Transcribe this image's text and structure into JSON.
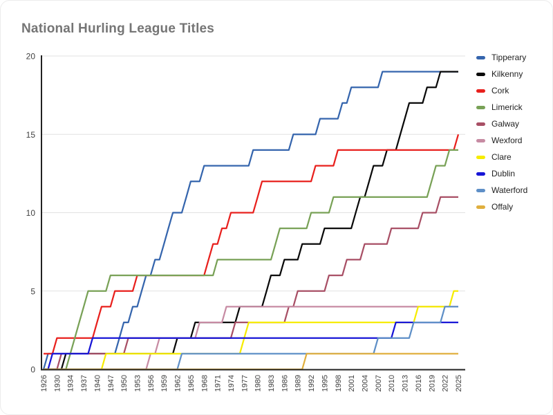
{
  "chart_data": {
    "type": "line",
    "title": "National Hurling League Titles",
    "ylim": [
      0,
      20
    ],
    "y_ticks": [
      0,
      5,
      10,
      15,
      20
    ],
    "grid": true,
    "legend_position": "right",
    "x_tick_label_every": 3,
    "categories": [
      1926,
      1928,
      1929,
      1930,
      1932,
      1933,
      1934,
      1935,
      1936,
      1937,
      1938,
      1939,
      1940,
      1941,
      1946,
      1947,
      1948,
      1949,
      1950,
      1951,
      1952,
      1953,
      1954,
      1955,
      1956,
      1957,
      1958,
      1959,
      1960,
      1961,
      1962,
      1963,
      1964,
      1965,
      1966,
      1967,
      1968,
      1969,
      1970,
      1971,
      1972,
      1973,
      1974,
      1975,
      1976,
      1977,
      1978,
      1979,
      1980,
      1981,
      1982,
      1983,
      1984,
      1985,
      1986,
      1987,
      1988,
      1989,
      1990,
      1991,
      1992,
      1993,
      1994,
      1995,
      1996,
      1997,
      1998,
      1999,
      2000,
      2001,
      2002,
      2003,
      2004,
      2005,
      2006,
      2007,
      2008,
      2009,
      2010,
      2011,
      2012,
      2013,
      2014,
      2015,
      2016,
      2017,
      2018,
      2019,
      2020,
      2021,
      2022,
      2023,
      2024,
      2025
    ],
    "series": [
      {
        "name": "Tipperary",
        "color": "#3565ad",
        "final_total": 19,
        "win_years": [
          1928,
          1949,
          1950,
          1952,
          1954,
          1955,
          1957,
          1959,
          1960,
          1961,
          1964,
          1965,
          1968,
          1979,
          1988,
          1994,
          1999,
          2001,
          2008
        ]
      },
      {
        "name": "Kilkenny",
        "color": "#0a0a0a",
        "final_total": 19,
        "win_years": [
          1933,
          1962,
          1966,
          1976,
          1982,
          1983,
          1986,
          1990,
          1995,
          2002,
          2003,
          2005,
          2006,
          2009,
          2012,
          2013,
          2014,
          2018,
          2021
        ]
      },
      {
        "name": "Cork",
        "color": "#e8201d",
        "final_total": 15,
        "win_years": [
          1926,
          1930,
          1940,
          1941,
          1948,
          1953,
          1969,
          1970,
          1972,
          1974,
          1980,
          1981,
          1993,
          1998,
          2025
        ]
      },
      {
        "name": "Limerick",
        "color": "#78a156",
        "final_total": 14,
        "win_years": [
          1934,
          1935,
          1936,
          1937,
          1938,
          1947,
          1971,
          1984,
          1985,
          1992,
          1997,
          2019,
          2020,
          2023
        ]
      },
      {
        "name": "Galway",
        "color": "#a84f65",
        "final_total": 11,
        "win_years": [
          1932,
          1951,
          1975,
          1987,
          1989,
          1996,
          2000,
          2004,
          2010,
          2017,
          2021
        ]
      },
      {
        "name": "Wexford",
        "color": "#c78ba3",
        "final_total": 4,
        "win_years": [
          1956,
          1958,
          1967,
          1973
        ]
      },
      {
        "name": "Clare",
        "color": "#f6ec00",
        "final_total": 5,
        "win_years": [
          1946,
          1977,
          1978,
          2016,
          2024
        ]
      },
      {
        "name": "Dublin",
        "color": "#1715d6",
        "final_total": 3,
        "win_years": [
          1929,
          1939,
          2011
        ]
      },
      {
        "name": "Waterford",
        "color": "#5e8fc7",
        "final_total": 4,
        "win_years": [
          1963,
          2007,
          2015,
          2022
        ]
      },
      {
        "name": "Offaly",
        "color": "#e0af3e",
        "final_total": 1,
        "win_years": [
          1991
        ]
      }
    ],
    "axis_color": "#212121",
    "gridline_color": "#e2e2e2",
    "tick_label_color": "#404040",
    "title_color": "#757575"
  }
}
